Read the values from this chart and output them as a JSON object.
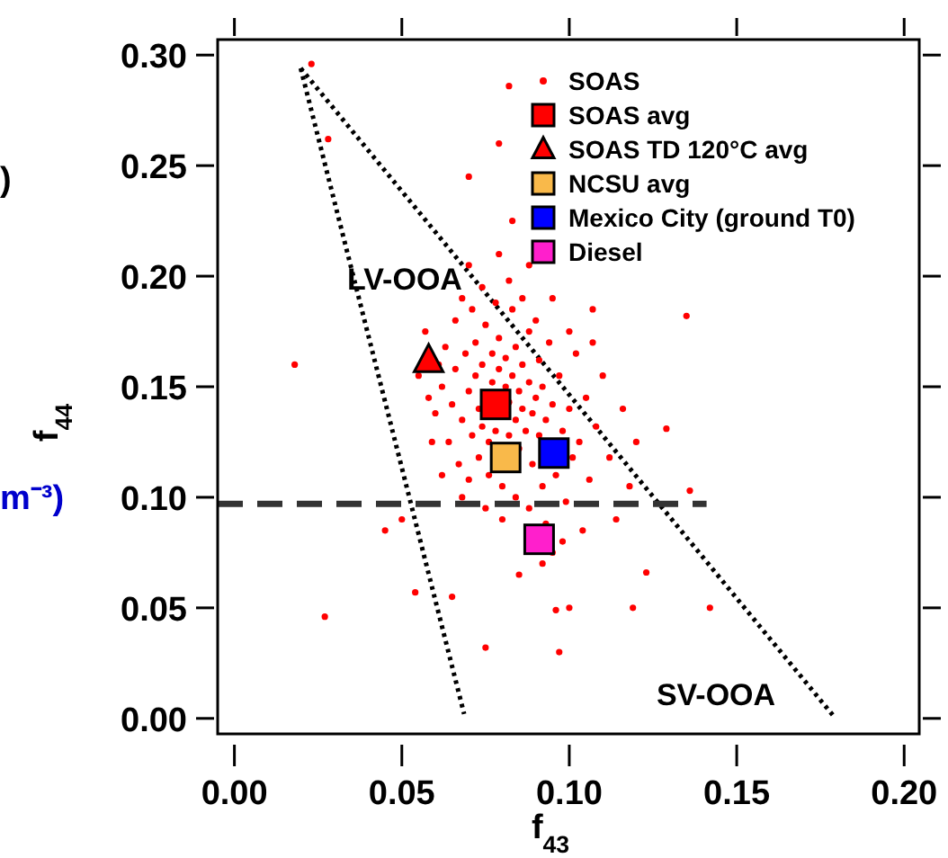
{
  "chart_data": {
    "type": "scatter",
    "xlabel": "f$_{43}$",
    "ylabel": "f$_{44}$",
    "xlim": [
      -0.005,
      0.2045
    ],
    "ylim": [
      -0.007,
      0.307
    ],
    "xticks": [
      {
        "value": 0,
        "label": "0.00"
      },
      {
        "value": 0.05,
        "label": "0.05"
      },
      {
        "value": 0.1,
        "label": "0.10"
      },
      {
        "value": 0.15,
        "label": "0.15"
      },
      {
        "value": 0.2,
        "label": "0.20"
      }
    ],
    "yticks": [
      {
        "value": 0,
        "label": "0.00"
      },
      {
        "value": 0.05,
        "label": "0.05"
      },
      {
        "value": 0.1,
        "label": "0.10"
      },
      {
        "value": 0.15,
        "label": "0.15"
      },
      {
        "value": 0.2,
        "label": "0.20"
      },
      {
        "value": 0.25,
        "label": "0.25"
      },
      {
        "value": 0.3,
        "label": "0.30"
      }
    ],
    "grid": false,
    "legend": "top right",
    "annotations": [
      "LV-OOA",
      "SV-OOA",
      "m⁻³)",
      ")"
    ],
    "series": [
      {
        "name": "SOAS",
        "marker": "circle",
        "color": "#ff0000",
        "x": [
          0.062,
          0.065,
          0.066,
          0.068,
          0.069,
          0.07,
          0.071,
          0.072,
          0.072,
          0.073,
          0.074,
          0.074,
          0.075,
          0.076,
          0.077,
          0.077,
          0.078,
          0.079,
          0.079,
          0.081,
          0.081,
          0.082,
          0.082,
          0.083,
          0.083,
          0.084,
          0.084,
          0.085,
          0.085,
          0.086,
          0.086,
          0.087,
          0.088,
          0.088,
          0.089,
          0.089,
          0.09,
          0.091,
          0.091,
          0.092,
          0.092,
          0.093,
          0.094,
          0.095,
          0.096,
          0.097,
          0.098,
          0.099,
          0.1,
          0.101,
          0.102,
          0.103,
          0.105,
          0.106,
          0.108,
          0.11,
          0.112,
          0.114,
          0.116,
          0.118,
          0.12,
          0.063,
          0.064,
          0.066,
          0.067,
          0.068,
          0.07,
          0.071,
          0.073,
          0.074,
          0.076,
          0.078,
          0.08,
          0.082,
          0.084,
          0.086,
          0.088,
          0.09,
          0.093,
          0.095,
          0.098,
          0.1,
          0.104,
          0.107,
          0.06,
          0.061,
          0.058,
          0.057,
          0.059,
          0.055,
          0.07,
          0.079,
          0.088,
          0.083,
          0.095,
          0.092,
          0.085,
          0.08,
          0.075,
          0.068,
          0.062,
          0.05,
          0.023,
          0.028,
          0.07,
          0.018,
          0.027,
          0.054,
          0.045,
          0.065,
          0.075,
          0.097,
          0.142,
          0.123,
          0.119,
          0.096,
          0.1,
          0.136,
          0.129,
          0.135,
          0.107,
          0.082,
          0.079
        ],
        "values": [
          0.15,
          0.142,
          0.158,
          0.135,
          0.165,
          0.148,
          0.128,
          0.155,
          0.17,
          0.14,
          0.132,
          0.16,
          0.178,
          0.125,
          0.152,
          0.165,
          0.13,
          0.158,
          0.172,
          0.15,
          0.163,
          0.128,
          0.143,
          0.155,
          0.185,
          0.135,
          0.168,
          0.122,
          0.148,
          0.14,
          0.16,
          0.13,
          0.152,
          0.175,
          0.115,
          0.138,
          0.145,
          0.128,
          0.162,
          0.105,
          0.15,
          0.135,
          0.17,
          0.142,
          0.11,
          0.155,
          0.13,
          0.098,
          0.14,
          0.118,
          0.165,
          0.125,
          0.145,
          0.108,
          0.132,
          0.155,
          0.118,
          0.09,
          0.14,
          0.105,
          0.125,
          0.168,
          0.125,
          0.18,
          0.115,
          0.19,
          0.108,
          0.185,
          0.118,
          0.195,
          0.11,
          0.188,
          0.105,
          0.198,
          0.1,
          0.19,
          0.095,
          0.18,
          0.088,
          0.19,
          0.08,
          0.175,
          0.085,
          0.17,
          0.138,
          0.16,
          0.145,
          0.175,
          0.125,
          0.155,
          0.205,
          0.21,
          0.205,
          0.225,
          0.075,
          0.07,
          0.065,
          0.09,
          0.095,
          0.1,
          0.11,
          0.09,
          0.296,
          0.262,
          0.245,
          0.16,
          0.046,
          0.057,
          0.085,
          0.055,
          0.032,
          0.03,
          0.05,
          0.066,
          0.05,
          0.049,
          0.05,
          0.103,
          0.131,
          0.182,
          0.185,
          0.286,
          0.26
        ]
      },
      {
        "name": "SOAS avg",
        "marker": "square",
        "color": "#ff0000",
        "x": [
          0.078
        ],
        "values": [
          0.142
        ]
      },
      {
        "name": "SOAS TD 120°C avg",
        "marker": "triangle",
        "color": "#ff0000",
        "x": [
          0.058
        ],
        "values": [
          0.162
        ]
      },
      {
        "name": "NCSU avg",
        "marker": "square",
        "color": "#f9b94a",
        "x": [
          0.081
        ],
        "values": [
          0.118
        ]
      },
      {
        "name": "Mexico City (ground T0)",
        "marker": "square",
        "color": "#0000ff",
        "x": [
          0.0954
        ],
        "values": [
          0.12
        ]
      },
      {
        "name": "Diesel",
        "marker": "square",
        "color": "#ff1fcc",
        "x": [
          0.091
        ],
        "values": [
          0.081
        ]
      },
      {
        "type": "line",
        "line_style": "dotted",
        "color": "#000000",
        "x": [
          0.0198,
          0.0686
        ],
        "values": [
          0.294,
          0.002
        ]
      },
      {
        "type": "line",
        "line_style": "dotted",
        "color": "#000000",
        "x": [
          0.0198,
          0.1795
        ],
        "values": [
          0.294,
          0.0
        ]
      },
      {
        "type": "line",
        "line_style": "dashed",
        "color": "#333333",
        "x": [
          -0.005,
          0.141
        ],
        "values": [
          0.097,
          0.097
        ]
      }
    ]
  }
}
